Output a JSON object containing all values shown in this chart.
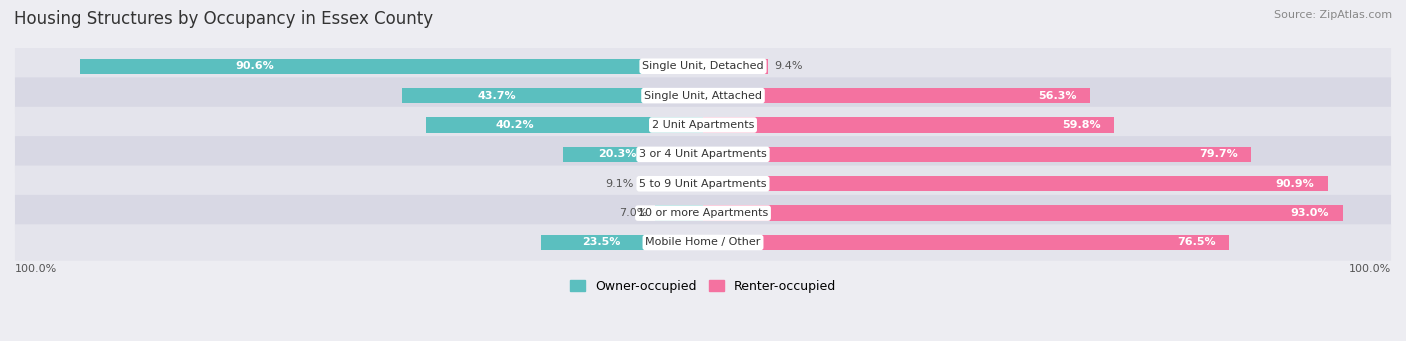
{
  "title": "Housing Structures by Occupancy in Essex County",
  "source": "Source: ZipAtlas.com",
  "categories": [
    "Single Unit, Detached",
    "Single Unit, Attached",
    "2 Unit Apartments",
    "3 or 4 Unit Apartments",
    "5 to 9 Unit Apartments",
    "10 or more Apartments",
    "Mobile Home / Other"
  ],
  "owner_pct": [
    90.6,
    43.7,
    40.2,
    20.3,
    9.1,
    7.0,
    23.5
  ],
  "renter_pct": [
    9.4,
    56.3,
    59.8,
    79.7,
    90.9,
    93.0,
    76.5
  ],
  "owner_color": "#5bbfbf",
  "renter_color": "#f472a0",
  "bg_color": "#ededf2",
  "row_colors": [
    "#e4e4ec",
    "#d8d8e4"
  ],
  "title_fontsize": 12,
  "label_fontsize": 8,
  "value_fontsize": 8,
  "legend_fontsize": 9,
  "source_fontsize": 8,
  "bar_height": 0.52
}
